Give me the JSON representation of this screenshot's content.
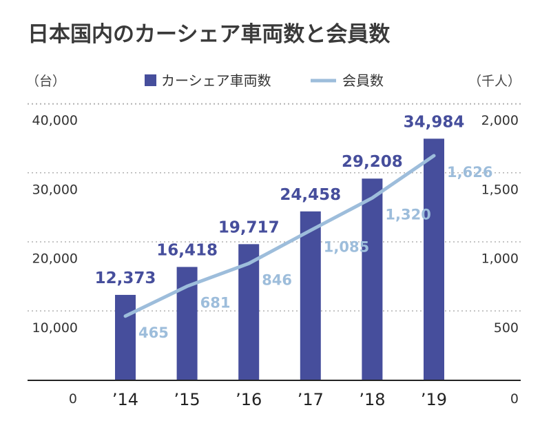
{
  "chart_data": {
    "type": "bar",
    "title": "日本国内のカーシェア車両数と会員数",
    "categories": [
      "’14",
      "’15",
      "’16",
      "’17",
      "’18",
      "’19"
    ],
    "left_axis": {
      "unit": "（台）",
      "range": [
        0,
        40000
      ],
      "ticks": [
        "0",
        "10,000",
        "20,000",
        "30,000",
        "40,000"
      ],
      "tick_values": [
        0,
        10000,
        20000,
        30000,
        40000
      ]
    },
    "right_axis": {
      "unit": "（千人）",
      "range": [
        0,
        2000
      ],
      "ticks": [
        "0",
        "500",
        "1,000",
        "1,500",
        "2,000"
      ],
      "tick_values": [
        0,
        500,
        1000,
        1500,
        2000
      ]
    },
    "series": [
      {
        "name": "カーシェア車両数",
        "type": "bar",
        "axis": "left",
        "color": "#464e9c",
        "values": [
          12373,
          16418,
          19717,
          24458,
          29208,
          34984
        ],
        "labels": [
          "12,373",
          "16,418",
          "19,717",
          "24,458",
          "29,208",
          "34,984"
        ]
      },
      {
        "name": "会員数",
        "type": "line",
        "axis": "right",
        "color": "#9dbddb",
        "values": [
          465,
          681,
          846,
          1085,
          1320,
          1626
        ],
        "labels": [
          "465",
          "681",
          "846",
          "1,085",
          "1,320",
          "1,626"
        ]
      }
    ],
    "grid": "dotted",
    "legend": "top"
  }
}
